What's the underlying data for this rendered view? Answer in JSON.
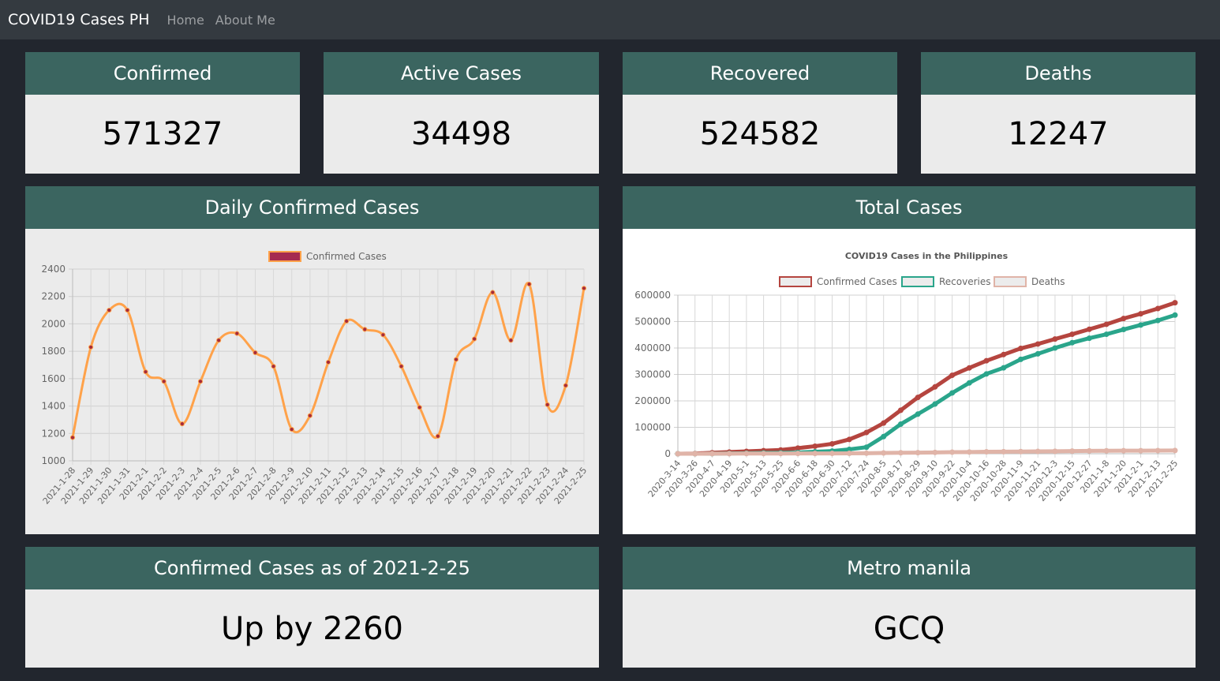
{
  "nav": {
    "brand": "COVID19 Cases PH",
    "links": [
      "Home",
      "About Me"
    ]
  },
  "stats": [
    {
      "title": "Confirmed",
      "value": "571327"
    },
    {
      "title": "Active Cases",
      "value": "34498"
    },
    {
      "title": "Recovered",
      "value": "524582"
    },
    {
      "title": "Deaths",
      "value": "12247"
    }
  ],
  "daily_card": {
    "title": "Daily Confirmed Cases"
  },
  "total_card": {
    "title": "Total Cases"
  },
  "bottom": [
    {
      "title": "Confirmed Cases as of 2021-2-25",
      "value": "Up by 2260"
    },
    {
      "title": "Metro manila",
      "value": "GCQ"
    }
  ],
  "colors": {
    "header": "#3b6560",
    "card": "#ebebeb",
    "line": "#ffa24a",
    "point": "#a52a3a",
    "confirmed": "#b5453f",
    "recovered": "#2aa58b",
    "deaths": "#e0b4a8"
  },
  "chart_data": [
    {
      "type": "line",
      "title": "",
      "legend": [
        "Confirmed Cases"
      ],
      "legend_position": "top",
      "ylim": [
        1000,
        2400
      ],
      "yticks": [
        1000,
        1200,
        1400,
        1600,
        1800,
        2000,
        2200,
        2400
      ],
      "categories": [
        "2021-1-28",
        "2021-1-29",
        "2021-1-30",
        "2021-1-31",
        "2021-2-1",
        "2021-2-2",
        "2021-2-3",
        "2021-2-4",
        "2021-2-5",
        "2021-2-6",
        "2021-2-7",
        "2021-2-8",
        "2021-2-9",
        "2021-2-10",
        "2021-2-11",
        "2021-2-12",
        "2021-2-13",
        "2021-2-14",
        "2021-2-15",
        "2021-2-16",
        "2021-2-17",
        "2021-2-18",
        "2021-2-19",
        "2021-2-20",
        "2021-2-21",
        "2021-2-22",
        "2021-2-23",
        "2021-2-24",
        "2021-2-25"
      ],
      "series": [
        {
          "name": "Confirmed Cases",
          "values": [
            1170,
            1830,
            2100,
            2100,
            1650,
            1580,
            1270,
            1580,
            1880,
            1930,
            1790,
            1690,
            1230,
            1330,
            1720,
            2020,
            1960,
            1920,
            1690,
            1390,
            1180,
            1740,
            1890,
            2230,
            1880,
            2290,
            1410,
            1550,
            2260
          ]
        }
      ]
    },
    {
      "type": "line",
      "title": "COVID19 Cases in the Philippines",
      "legend": [
        "Confirmed Cases",
        "Recoveries",
        "Deaths"
      ],
      "legend_position": "top",
      "ylim": [
        0,
        600000
      ],
      "yticks": [
        0,
        100000,
        200000,
        300000,
        400000,
        500000,
        600000
      ],
      "categories": [
        "2020-3-14",
        "2020-3-26",
        "2020-4-7",
        "2020-4-19",
        "2020-5-1",
        "2020-5-13",
        "2020-5-25",
        "2020-6-6",
        "2020-6-18",
        "2020-6-30",
        "2020-7-12",
        "2020-7-24",
        "2020-8-5",
        "2020-8-17",
        "2020-8-29",
        "2020-9-10",
        "2020-9-22",
        "2020-10-4",
        "2020-10-16",
        "2020-10-28",
        "2020-11-9",
        "2020-11-21",
        "2020-12-3",
        "2020-12-15",
        "2020-12-27",
        "2021-1-8",
        "2021-1-20",
        "2021-2-1",
        "2021-2-13",
        "2021-2-25"
      ],
      "series": [
        {
          "name": "Confirmed Cases",
          "values": [
            100,
            700,
            3900,
            6200,
            8900,
            11600,
            14300,
            21300,
            28500,
            37500,
            54200,
            80400,
            115900,
            164500,
            213100,
            252800,
            296800,
            324800,
            351800,
            375200,
            398400,
            415100,
            434000,
            452000,
            470800,
            489700,
            511600,
            529400,
            549200,
            571327
          ]
        },
        {
          "name": "Recoveries",
          "values": [
            0,
            30,
            200,
            1000,
            1900,
            3000,
            3500,
            4400,
            7400,
            10200,
            16600,
            24700,
            65000,
            112000,
            150000,
            188000,
            230000,
            268000,
            302000,
            325000,
            357000,
            378000,
            400000,
            420000,
            437000,
            452000,
            470000,
            487000,
            504000,
            524582
          ]
        },
        {
          "name": "Deaths",
          "values": [
            12,
            60,
            200,
            400,
            600,
            800,
            900,
            1100,
            1200,
            1300,
            1400,
            2000,
            2900,
            3600,
            4200,
            5000,
            5900,
            6500,
            7300,
            7800,
            8300,
            8800,
            9400,
            10100,
            10700,
            11100,
            11400,
            11500,
            11900,
            12247
          ]
        }
      ]
    }
  ]
}
